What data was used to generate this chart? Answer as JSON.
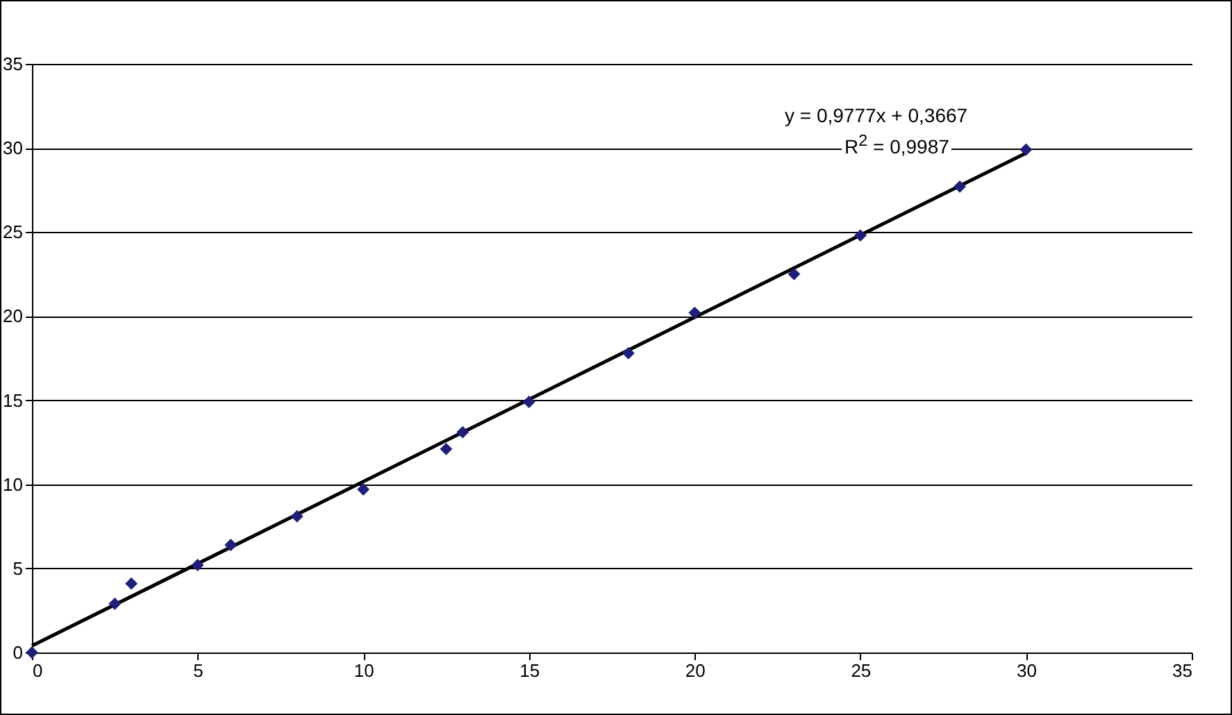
{
  "chart_data": {
    "type": "scatter",
    "x": [
      0,
      2.5,
      3,
      5,
      6,
      8,
      10,
      12.5,
      13,
      15,
      18,
      20,
      23,
      25,
      28,
      30
    ],
    "series": [
      {
        "type": "line",
        "color": "#000000",
        "x": [
          0,
          30
        ],
        "values": [
          0.4,
          29.7
        ],
        "line_style": "solid"
      },
      {
        "color": "#1f1f7a",
        "marker": "diamond",
        "values": [
          0,
          2.9,
          4.1,
          5.2,
          6.4,
          8.1,
          9.7,
          12.1,
          13.1,
          14.9,
          17.8,
          20.2,
          22.5,
          24.8,
          27.7,
          29.9
        ]
      }
    ],
    "annotations": [
      "y = 0,9777x + 0,3667",
      "R$^{2}$ = 0,9987"
    ],
    "xlim": [
      0,
      35
    ],
    "xticks": [
      0,
      5,
      10,
      15,
      20,
      25,
      30,
      35
    ],
    "ylim": [
      0,
      35
    ],
    "yticks": [
      0,
      5,
      10,
      15,
      20,
      25,
      30,
      35
    ],
    "grid": "y"
  }
}
